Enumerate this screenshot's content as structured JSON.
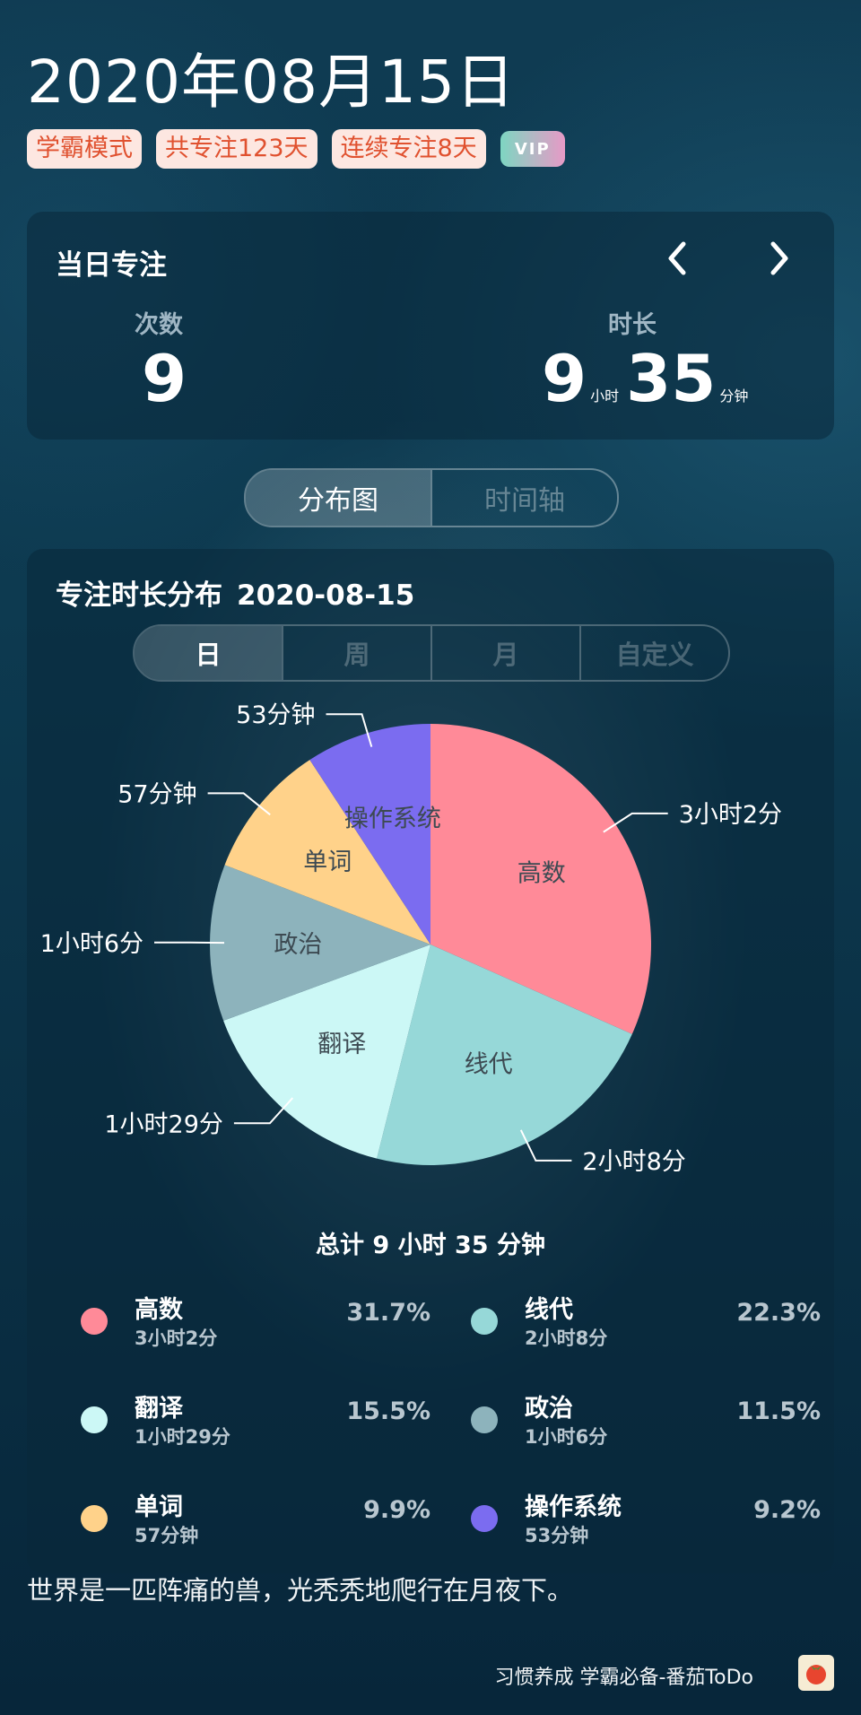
{
  "header": {
    "date": "2020年08月15日",
    "badges": [
      "学霸模式",
      "共专注123天",
      "连续专注8天"
    ],
    "vip_label": "VIP"
  },
  "daily": {
    "title": "当日专注",
    "count_label": "次数",
    "count_value": "9",
    "duration_label": "时长",
    "hours": "9",
    "hours_unit": "小时",
    "minutes": "35",
    "minutes_unit": "分钟"
  },
  "view_tabs": {
    "items": [
      "分布图",
      "时间轴"
    ],
    "active": "分布图"
  },
  "distribution": {
    "title": "专注时长分布",
    "date": "2020-08-15",
    "range_tabs": [
      "日",
      "周",
      "月",
      "自定义"
    ],
    "active_range": "日",
    "total_text": "总计 9 小时 35 分钟"
  },
  "chart_data": {
    "type": "pie",
    "title": "专注时长分布 2020-08-15",
    "slices": [
      {
        "name": "高数",
        "label": "3小时2分",
        "minutes": 182,
        "percent": "31.7%",
        "color": "#ff8a98"
      },
      {
        "name": "线代",
        "label": "2小时8分",
        "minutes": 128,
        "percent": "22.3%",
        "color": "#96d8d8"
      },
      {
        "name": "翻译",
        "label": "1小时29分",
        "minutes": 89,
        "percent": "15.5%",
        "color": "#ccf8f6"
      },
      {
        "name": "政治",
        "label": "1小时6分",
        "minutes": 66,
        "percent": "11.5%",
        "color": "#8db3bc"
      },
      {
        "name": "单词",
        "label": "57分钟",
        "minutes": 57,
        "percent": "9.9%",
        "color": "#ffd28a"
      },
      {
        "name": "操作系统",
        "label": "53分钟",
        "minutes": 53,
        "percent": "9.2%",
        "color": "#7b6cf0"
      }
    ]
  },
  "footer": {
    "quote": "世界是一匹阵痛的兽，光秃秃地爬行在月夜下。",
    "app_text": "习惯养成 学霸必备-番茄ToDo"
  },
  "colors": {
    "badge_bg": "#fde7e1",
    "badge_text": "#e0512f"
  }
}
